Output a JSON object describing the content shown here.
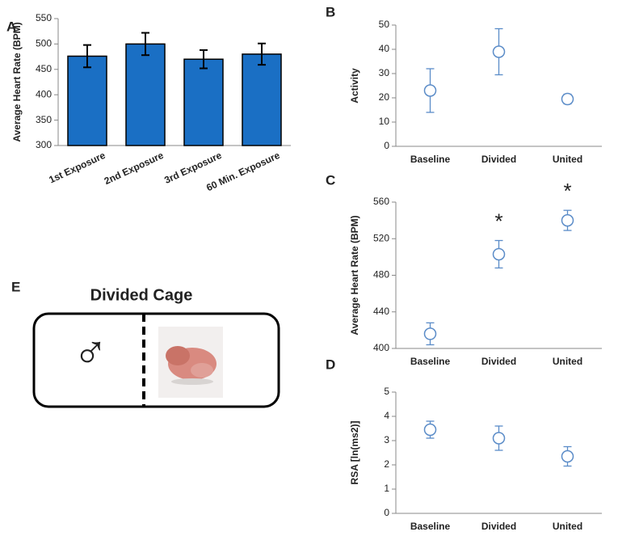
{
  "chart_data": [
    {
      "type": "bar",
      "panel": "A",
      "ylabel": "Average Heart Rate (BPM)",
      "categories": [
        "1st Exposure",
        "2nd Exposure",
        "3rd Exposure",
        "60 Min. Exposure"
      ],
      "values": [
        476,
        500,
        470,
        480
      ],
      "errors": [
        22,
        22,
        18,
        21
      ],
      "color": "#1a6fc4",
      "ylim": [
        300,
        550
      ],
      "yticks": [
        300,
        350,
        400,
        450,
        500,
        550
      ]
    },
    {
      "type": "point",
      "panel": "B",
      "ylabel": "Activity",
      "categories": [
        "Baseline",
        "Divided",
        "United"
      ],
      "values": [
        23,
        39,
        19.5
      ],
      "errors": [
        9,
        9.5,
        2
      ],
      "color": "#5b8cc8",
      "ylim": [
        0,
        50
      ],
      "yticks": [
        0,
        10,
        20,
        30,
        40,
        50
      ]
    },
    {
      "type": "point",
      "panel": "C",
      "ylabel": "Average Heart Rate (BPM)",
      "categories": [
        "Baseline",
        "Divided",
        "United"
      ],
      "values": [
        416,
        503,
        540
      ],
      "errors": [
        12,
        15,
        11
      ],
      "color": "#5b8cc8",
      "significance": [
        null,
        "*",
        "*"
      ],
      "ylim": [
        400,
        560
      ],
      "yticks": [
        400,
        440,
        480,
        520,
        560
      ]
    },
    {
      "type": "point",
      "panel": "D",
      "ylabel": "RSA [ln(ms2)]",
      "categories": [
        "Baseline",
        "Divided",
        "United"
      ],
      "values": [
        3.45,
        3.1,
        2.35
      ],
      "errors": [
        0.35,
        0.5,
        0.4
      ],
      "color": "#5b8cc8",
      "ylim": [
        0,
        5
      ],
      "yticks": [
        0,
        1,
        2,
        3,
        4,
        5
      ]
    }
  ],
  "diagram": {
    "panel": "E",
    "title": "Divided Cage",
    "symbol": "♂"
  }
}
